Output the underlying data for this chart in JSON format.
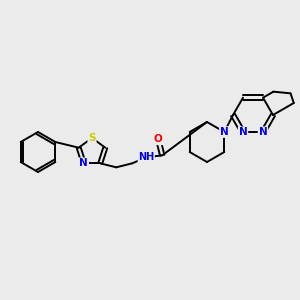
{
  "bg_color": "#ebebeb",
  "bond_color": "#000000",
  "atom_colors": {
    "S": "#cccc00",
    "N": "#0000ee",
    "O": "#ff0000",
    "C": "#000000"
  },
  "figsize": [
    3.0,
    3.0
  ],
  "dpi": 100,
  "lw": 1.4,
  "fontsize": 7.5
}
